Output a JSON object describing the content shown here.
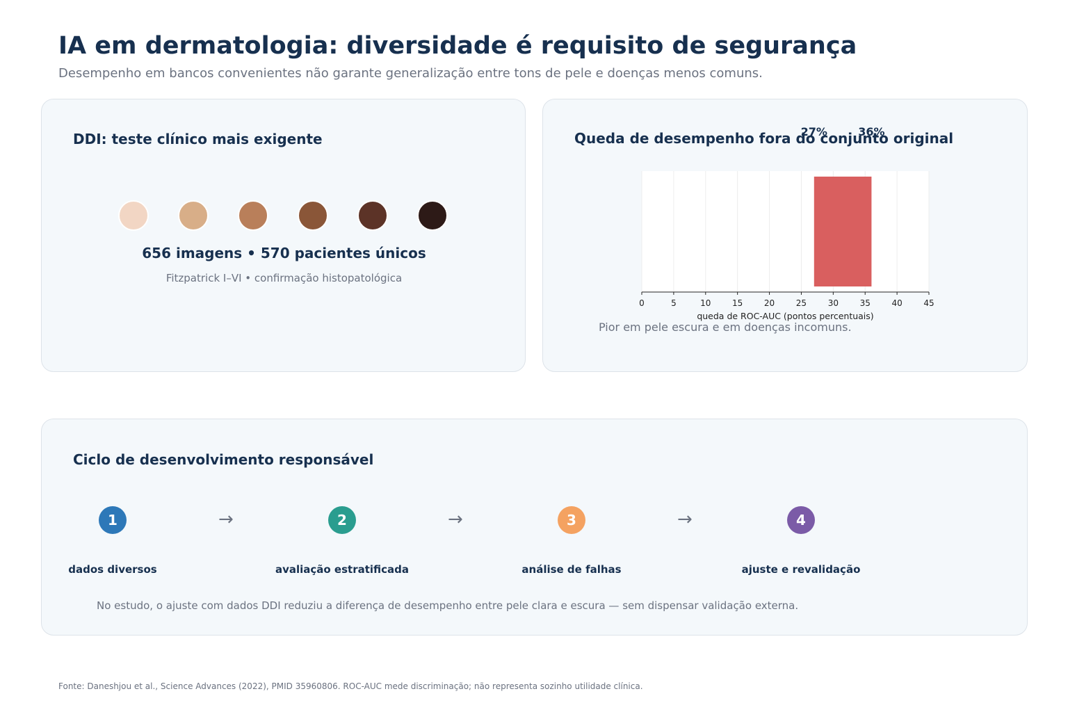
{
  "header": {
    "title": "IA em dermatologia: diversidade é requisito de segurança",
    "subtitle": "Desempenho em bancos convenientes não garante generalização entre tons de pele e doenças menos comuns."
  },
  "ddi_card": {
    "title": "DDI: teste clínico mais exigente",
    "skin_tones": [
      "#f2d6c4",
      "#d8ae88",
      "#b97f5a",
      "#8a5638",
      "#5c3327",
      "#2d1a17"
    ],
    "stat": "656 imagens • 570 pacientes únicos",
    "note": "Fitzpatrick I–VI • confirmação histopatológica"
  },
  "drop_card": {
    "title": "Queda de desempenho fora do conjunto original",
    "caption": "Pior em pele escura e em doenças incomuns."
  },
  "chart_data": {
    "type": "bar",
    "orientation": "horizontal",
    "bar_range": [
      27,
      36
    ],
    "value_labels": [
      "27%",
      "36%"
    ],
    "xlabel": "queda de ROC-AUC (pontos percentuais)",
    "xlim": [
      0,
      45
    ],
    "xticks": [
      0,
      5,
      10,
      15,
      20,
      25,
      30,
      35,
      40,
      45
    ],
    "grid": true,
    "bar_color": "#d95f5f"
  },
  "cycle_card": {
    "title": "Ciclo de desenvolvimento responsável",
    "arrow": "→",
    "steps": [
      {
        "number": "1",
        "label": "dados diversos",
        "color": "#2d78b8"
      },
      {
        "number": "2",
        "label": "avaliação estratificada",
        "color": "#2a9d8f"
      },
      {
        "number": "3",
        "label": "análise de falhas",
        "color": "#f4a261"
      },
      {
        "number": "4",
        "label": "ajuste e revalidação",
        "color": "#7b5ba7"
      }
    ],
    "note": "No estudo, o ajuste com dados DDI reduziu a diferença de desempenho entre pele clara e escura — sem dispensar validação externa."
  },
  "footer": {
    "source": "Fonte: Daneshjou et al., Science Advances (2022), PMID 35960806. ROC-AUC mede discriminação; não representa sozinho utilidade clínica."
  }
}
